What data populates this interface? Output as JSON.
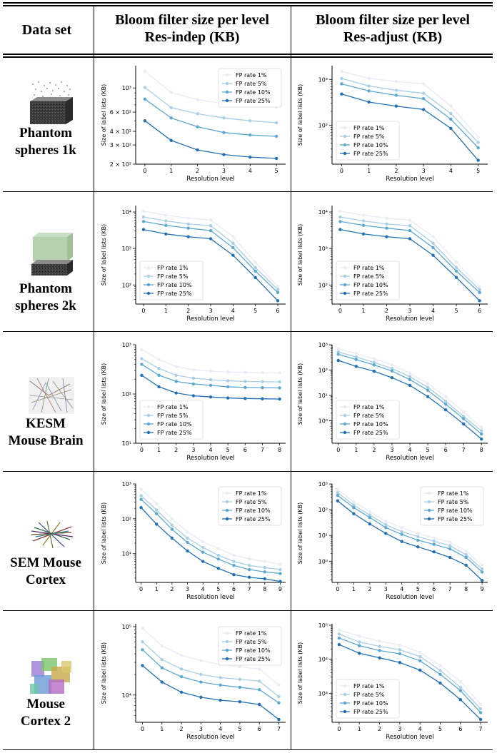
{
  "header": {
    "col1": "Data set",
    "col2_line1": "Bloom filter size per level",
    "col2_line2": "Res-indep (KB)",
    "col3_line1": "Bloom filter size per level",
    "col3_line2": "Res-adjust (KB)"
  },
  "rows": [
    {
      "name_line1": "Phantom",
      "name_line2": "spheres 1k"
    },
    {
      "name_line1": "Phantom",
      "name_line2": "spheres 2k"
    },
    {
      "name_line1": "KESM",
      "name_line2": "Mouse Brain"
    },
    {
      "name_line1": "SEM Mouse",
      "name_line2": "Cortex"
    },
    {
      "name_line1": "Mouse",
      "name_line2": "Cortex 2"
    }
  ],
  "series_colors": [
    "#e9ecf6",
    "#a9cfe5",
    "#5ca8d1",
    "#2270b3"
  ],
  "chart_data": [
    {
      "type": "line",
      "panel": "r1c1",
      "xlabel": "Resolution level",
      "ylabel": "Size of label lists (KB)",
      "yscale": "log",
      "ylim": [
        200,
        1600
      ],
      "yticks": [
        {
          "v": 200,
          "t": "2 × 10²"
        },
        {
          "v": 300,
          "t": "3 × 10²"
        },
        {
          "v": 400,
          "t": "4 × 10²"
        },
        {
          "v": 600,
          "t": "6 × 10²"
        },
        {
          "v": 1000,
          "t": "10³"
        }
      ],
      "x": [
        0,
        1,
        2,
        3,
        4,
        5
      ],
      "legend": "upper-right",
      "series": [
        {
          "name": "FP rate 1%",
          "values": [
            1420,
            910,
            780,
            720,
            690,
            670
          ]
        },
        {
          "name": "FP rate 5%",
          "values": [
            1010,
            660,
            580,
            530,
            500,
            480
          ]
        },
        {
          "name": "FP rate 10%",
          "values": [
            790,
            530,
            440,
            390,
            370,
            360
          ]
        },
        {
          "name": "FP rate 25%",
          "values": [
            500,
            330,
            270,
            245,
            232,
            226
          ]
        }
      ]
    },
    {
      "type": "line",
      "panel": "r1c2",
      "xlabel": "Resolution level",
      "ylabel": "Size of label lists (KB)",
      "yscale": "log",
      "ylim": [
        14,
        2000
      ],
      "yticks": [
        {
          "v": 100,
          "t": "10²"
        },
        {
          "v": 1000,
          "t": "10³"
        }
      ],
      "x": [
        0,
        1,
        2,
        3,
        4,
        5
      ],
      "legend": "lower-left",
      "series": [
        {
          "name": "FP rate 1%",
          "values": [
            1500,
            1050,
            900,
            800,
            260,
            55
          ]
        },
        {
          "name": "FP rate 5%",
          "values": [
            1050,
            720,
            580,
            500,
            180,
            42
          ]
        },
        {
          "name": "FP rate 10%",
          "values": [
            800,
            560,
            450,
            380,
            135,
            32
          ]
        },
        {
          "name": "FP rate 25%",
          "values": [
            480,
            320,
            260,
            220,
            85,
            17
          ]
        }
      ]
    },
    {
      "type": "line",
      "panel": "r2c1",
      "xlabel": "Resolution level",
      "ylabel": "Size of label lists (KB)",
      "yscale": "log",
      "ylim": [
        30,
        15000
      ],
      "yticks": [
        {
          "v": 100,
          "t": "10²"
        },
        {
          "v": 1000,
          "t": "10³"
        },
        {
          "v": 10000,
          "t": "10⁴"
        }
      ],
      "x": [
        0,
        1,
        2,
        3,
        4,
        5,
        6
      ],
      "legend": "lower-left",
      "series": [
        {
          "name": "FP rate 1%",
          "values": [
            10500,
            8200,
            6800,
            6000,
            2100,
            420,
            90
          ]
        },
        {
          "name": "FP rate 5%",
          "values": [
            7300,
            5700,
            4700,
            4200,
            1400,
            300,
            75
          ]
        },
        {
          "name": "FP rate 10%",
          "values": [
            5500,
            4300,
            3600,
            3100,
            1050,
            240,
            62
          ]
        },
        {
          "name": "FP rate 25%",
          "values": [
            3300,
            2500,
            2100,
            1850,
            650,
            160,
            37
          ]
        }
      ]
    },
    {
      "type": "line",
      "panel": "r2c2",
      "xlabel": "Resolution level",
      "ylabel": "Size of label lists (KB)",
      "yscale": "log",
      "ylim": [
        30,
        15000
      ],
      "yticks": [
        {
          "v": 100,
          "t": "10²"
        },
        {
          "v": 1000,
          "t": "10³"
        },
        {
          "v": 10000,
          "t": "10⁴"
        }
      ],
      "x": [
        0,
        1,
        2,
        3,
        4,
        5,
        6
      ],
      "legend": "lower-left",
      "series": [
        {
          "name": "FP rate 1%",
          "values": [
            10500,
            8200,
            6800,
            6000,
            2100,
            420,
            90
          ]
        },
        {
          "name": "FP rate 5%",
          "values": [
            7300,
            5700,
            4700,
            4200,
            1400,
            300,
            75
          ]
        },
        {
          "name": "FP rate 10%",
          "values": [
            5500,
            4300,
            3600,
            3100,
            1050,
            240,
            62
          ]
        },
        {
          "name": "FP rate 25%",
          "values": [
            3300,
            2500,
            2100,
            1850,
            650,
            160,
            37
          ]
        }
      ]
    },
    {
      "type": "line",
      "panel": "r3c1",
      "xlabel": "Resolution level",
      "ylabel": "Size of label lists (KB)",
      "yscale": "log",
      "ylim": [
        10,
        1000
      ],
      "yticks": [
        {
          "v": 10,
          "t": "10¹"
        },
        {
          "v": 100,
          "t": "10²"
        },
        {
          "v": 1000,
          "t": "10³"
        }
      ],
      "x": [
        0,
        1,
        2,
        3,
        4,
        5,
        6,
        7,
        8
      ],
      "legend": "lower-left",
      "series": [
        {
          "name": "FP rate 1%",
          "values": [
            800,
            500,
            360,
            310,
            290,
            280,
            275,
            270,
            268
          ]
        },
        {
          "name": "FP rate 5%",
          "values": [
            520,
            330,
            240,
            210,
            195,
            185,
            180,
            178,
            176
          ]
        },
        {
          "name": "FP rate 10%",
          "values": [
            400,
            240,
            180,
            160,
            150,
            140,
            136,
            134,
            133
          ]
        },
        {
          "name": "FP rate 25%",
          "values": [
            240,
            140,
            105,
            92,
            87,
            83,
            81,
            80,
            79
          ]
        }
      ]
    },
    {
      "type": "line",
      "panel": "r3c2",
      "xlabel": "Resolution level",
      "ylabel": "Size of label lists (KB)",
      "yscale": "log",
      "ylim": [
        0.13,
        1000
      ],
      "yticks": [
        {
          "v": 1,
          "t": "10⁰"
        },
        {
          "v": 10,
          "t": "10¹"
        },
        {
          "v": 100,
          "t": "10²"
        },
        {
          "v": 1000,
          "t": "10³"
        }
      ],
      "x": [
        0,
        1,
        2,
        3,
        4,
        5,
        6,
        7,
        8
      ],
      "legend": "lower-left",
      "series": [
        {
          "name": "FP rate 1%",
          "values": [
            700,
            450,
            280,
            160,
            75,
            30,
            9,
            2.2,
            0.55
          ]
        },
        {
          "name": "FP rate 5%",
          "values": [
            520,
            330,
            200,
            115,
            55,
            21,
            6,
            1.5,
            0.4
          ]
        },
        {
          "name": "FP rate 10%",
          "values": [
            420,
            260,
            160,
            92,
            42,
            16,
            4.5,
            1.2,
            0.3
          ]
        },
        {
          "name": "FP rate 25%",
          "values": [
            240,
            140,
            90,
            50,
            25,
            9,
            2.7,
            0.75,
            0.19
          ]
        }
      ]
    },
    {
      "type": "line",
      "panel": "r4c1",
      "xlabel": "Resolution level",
      "ylabel": "Size of label lists (KB)",
      "yscale": "log",
      "ylim": [
        1.5,
        1000
      ],
      "yticks": [
        {
          "v": 10,
          "t": "10¹"
        },
        {
          "v": 100,
          "t": "10²"
        },
        {
          "v": 1000,
          "t": "10³"
        }
      ],
      "x": [
        0,
        1,
        2,
        3,
        4,
        5,
        6,
        7,
        8,
        9
      ],
      "legend": "upper-right",
      "series": [
        {
          "name": "FP rate 1%",
          "values": [
            700,
            270,
            100,
            42,
            22,
            14,
            9,
            7,
            6,
            5
          ]
        },
        {
          "name": "FP rate 5%",
          "values": [
            460,
            180,
            66,
            28,
            15,
            9,
            6,
            4.6,
            4,
            3.5
          ]
        },
        {
          "name": "FP rate 10%",
          "values": [
            360,
            140,
            50,
            21,
            11,
            7,
            4.6,
            3.5,
            3,
            2.7
          ]
        },
        {
          "name": "FP rate 25%",
          "values": [
            210,
            70,
            28,
            12,
            6,
            3.8,
            2.5,
            2.1,
            1.9,
            1.6
          ]
        }
      ]
    },
    {
      "type": "line",
      "panel": "r4c2",
      "xlabel": "Resolution level",
      "ylabel": "Size of label lists (KB)",
      "yscale": "log",
      "ylim": [
        0.15,
        1000
      ],
      "yticks": [
        {
          "v": 1,
          "t": "10⁰"
        },
        {
          "v": 10,
          "t": "10¹"
        },
        {
          "v": 100,
          "t": "10²"
        },
        {
          "v": 1000,
          "t": "10³"
        }
      ],
      "x": [
        0,
        1,
        2,
        3,
        4,
        5,
        6,
        7,
        8,
        9
      ],
      "legend": "upper-right",
      "series": [
        {
          "name": "FP rate 1%",
          "values": [
            600,
            200,
            85,
            35,
            20,
            12,
            8,
            5.5,
            2.5,
            0.7
          ]
        },
        {
          "name": "FP rate 5%",
          "values": [
            460,
            150,
            62,
            26,
            14,
            9,
            6,
            4,
            1.8,
            0.5
          ]
        },
        {
          "name": "FP rate 10%",
          "values": [
            360,
            120,
            50,
            20,
            11,
            6.5,
            4.5,
            3,
            1.4,
            0.38
          ]
        },
        {
          "name": "FP rate 25%",
          "values": [
            220,
            70,
            28,
            12,
            5.8,
            3.6,
            2.3,
            1.4,
            0.7,
            0.18
          ]
        }
      ]
    },
    {
      "type": "line",
      "panel": "r5c1",
      "xlabel": "Resolution level",
      "ylabel": "Size of label lists (KB)",
      "yscale": "log",
      "ylim": [
        4000,
        110000
      ],
      "yticks": [
        {
          "v": 10000,
          "t": "10⁴"
        },
        {
          "v": 100000,
          "t": "10⁵"
        }
      ],
      "x": [
        0,
        1,
        2,
        3,
        4,
        5,
        6,
        7
      ],
      "legend": "upper-right",
      "series": [
        {
          "name": "FP rate 1%",
          "values": [
            95000,
            52000,
            38000,
            32000,
            28000,
            26000,
            24000,
            14000
          ]
        },
        {
          "name": "FP rate 5%",
          "values": [
            60000,
            33000,
            24000,
            20000,
            18000,
            17000,
            16000,
            9500
          ]
        },
        {
          "name": "FP rate 10%",
          "values": [
            46000,
            25000,
            18500,
            15500,
            14000,
            13000,
            12000,
            7700
          ]
        },
        {
          "name": "FP rate 25%",
          "values": [
            27000,
            15500,
            11000,
            9300,
            8400,
            8000,
            7300,
            4400
          ]
        }
      ]
    },
    {
      "type": "line",
      "panel": "r5c2",
      "xlabel": "Resolution level",
      "ylabel": "Size of label lists (KB)",
      "yscale": "log",
      "ylim": [
        140,
        110000
      ],
      "yticks": [
        {
          "v": 1000,
          "t": "10³"
        },
        {
          "v": 10000,
          "t": "10⁴"
        },
        {
          "v": 100000,
          "t": "10⁵"
        }
      ],
      "x": [
        0,
        1,
        2,
        3,
        4,
        5,
        6,
        7
      ],
      "legend": "lower-left",
      "series": [
        {
          "name": "FP rate 1%",
          "values": [
            72000,
            48000,
            34000,
            26000,
            16000,
            6500,
            2200,
            480
          ]
        },
        {
          "name": "FP rate 5%",
          "values": [
            55000,
            32000,
            24000,
            19000,
            12000,
            4700,
            1500,
            350
          ]
        },
        {
          "name": "FP rate 10%",
          "values": [
            42000,
            25000,
            18000,
            14500,
            9000,
            3600,
            1200,
            270
          ]
        },
        {
          "name": "FP rate 25%",
          "values": [
            27000,
            15000,
            11000,
            8000,
            4800,
            2000,
            650,
            170
          ]
        }
      ]
    }
  ]
}
